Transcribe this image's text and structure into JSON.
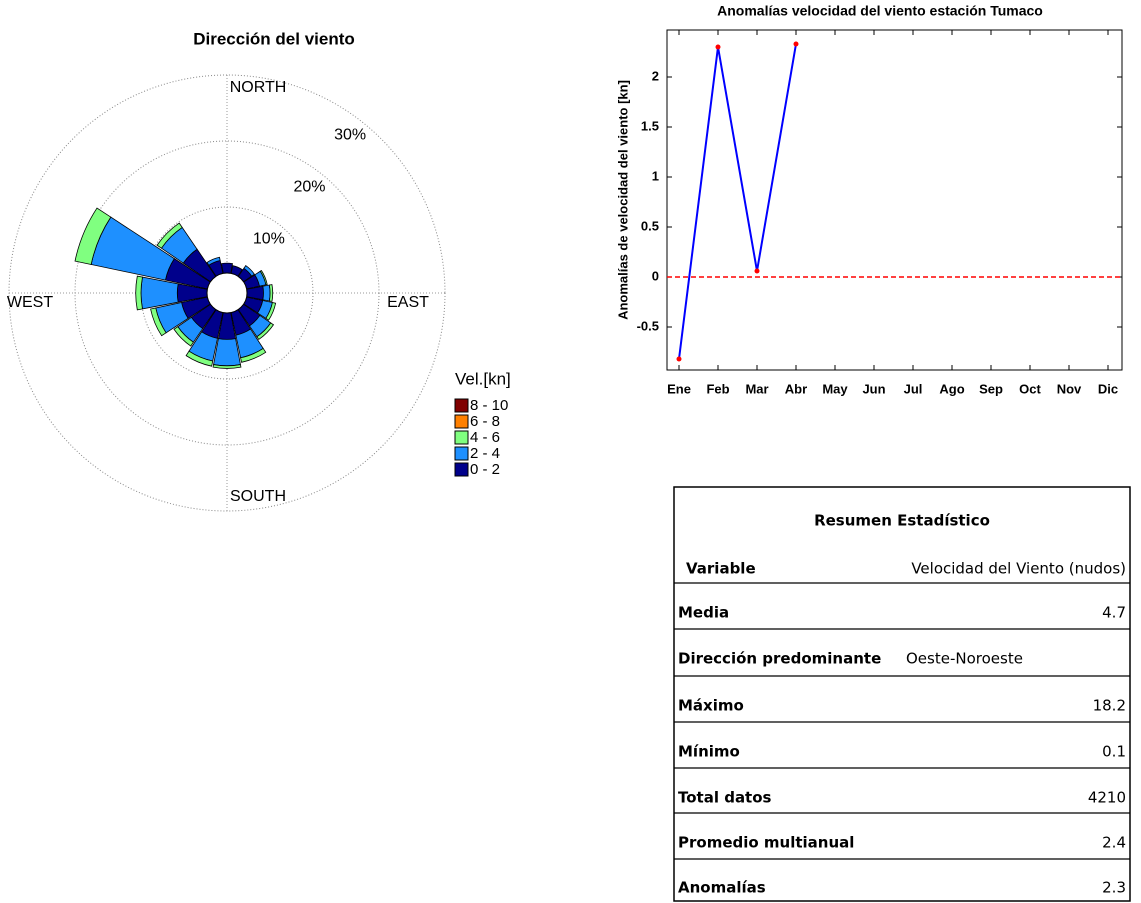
{
  "chart_data": [
    {
      "type": "windrose",
      "title": "Dirección del viento",
      "directions": [
        "NORTH",
        "EAST",
        "SOUTH",
        "WEST"
      ],
      "rlim": [
        0,
        30
      ],
      "rticks": [
        {
          "value": 10,
          "label": "10%"
        },
        {
          "value": 20,
          "label": "20%"
        },
        {
          "value": 30,
          "label": "30%"
        }
      ],
      "legend_title": "Vel.[kn]",
      "series": [
        {
          "name": "0 - 2",
          "color": "#00008b",
          "values": [
            1.5,
            1.2,
            1.5,
            2,
            2.5,
            2.5,
            3,
            3.5,
            4,
            4,
            3.5,
            4,
            4.5,
            6.5,
            5,
            2
          ]
        },
        {
          "name": "2 - 4",
          "color": "#1e90ff",
          "values": [
            0,
            0,
            0.5,
            1,
            1,
            1.5,
            2,
            3.5,
            4,
            3.5,
            2.5,
            4,
            5.5,
            11.5,
            4,
            0.5
          ]
        },
        {
          "name": "4 - 6",
          "color": "#80ff80",
          "values": [
            0,
            0,
            0,
            0.2,
            0.4,
            0.5,
            0.5,
            0.7,
            0.4,
            0.8,
            0.7,
            0.8,
            0.8,
            2.5,
            0.8,
            0
          ]
        },
        {
          "name": "6 - 8",
          "color": "#ff8000",
          "values": [
            0,
            0,
            0,
            0,
            0,
            0,
            0,
            0,
            0,
            0,
            0,
            0,
            0,
            0,
            0,
            0
          ]
        },
        {
          "name": "8 - 10",
          "color": "#800000",
          "values": [
            0,
            0,
            0,
            0,
            0,
            0,
            0,
            0,
            0,
            0,
            0,
            0,
            0,
            0,
            0,
            0
          ]
        }
      ]
    },
    {
      "type": "line",
      "title": "Anomalías velocidad del viento estación Tumaco",
      "y_label": "Anomalías de velocidad del viento [kn]",
      "categories": [
        "Ene",
        "Feb",
        "Mar",
        "Abr",
        "May",
        "Jun",
        "Jul",
        "Ago",
        "Sep",
        "Oct",
        "Nov",
        "Dic"
      ],
      "values": [
        -0.82,
        2.3,
        0.06,
        2.33,
        null,
        null,
        null,
        null,
        null,
        null,
        null,
        null
      ],
      "color": "#0000ff",
      "marker_color": "#ff0000",
      "reference_line": 0,
      "reference_color": "#ff0000",
      "ylim": [
        -0.93,
        2.47
      ],
      "yticks": [
        -0.5,
        0,
        0.5,
        1,
        1.5,
        2
      ]
    }
  ],
  "table": {
    "title": "Resumen Estadístico",
    "rows": [
      [
        "Variable",
        "Velocidad del Viento (nudos)"
      ],
      [
        "Media",
        "4.7"
      ],
      [
        "Dirección predominante",
        "Oeste-Noroeste"
      ],
      [
        "Máximo",
        "18.2"
      ],
      [
        "Mínimo",
        "0.1"
      ],
      [
        "Total datos",
        "4210"
      ],
      [
        "Promedio multianual",
        "2.4"
      ],
      [
        "Anomalías",
        "2.3"
      ]
    ]
  }
}
